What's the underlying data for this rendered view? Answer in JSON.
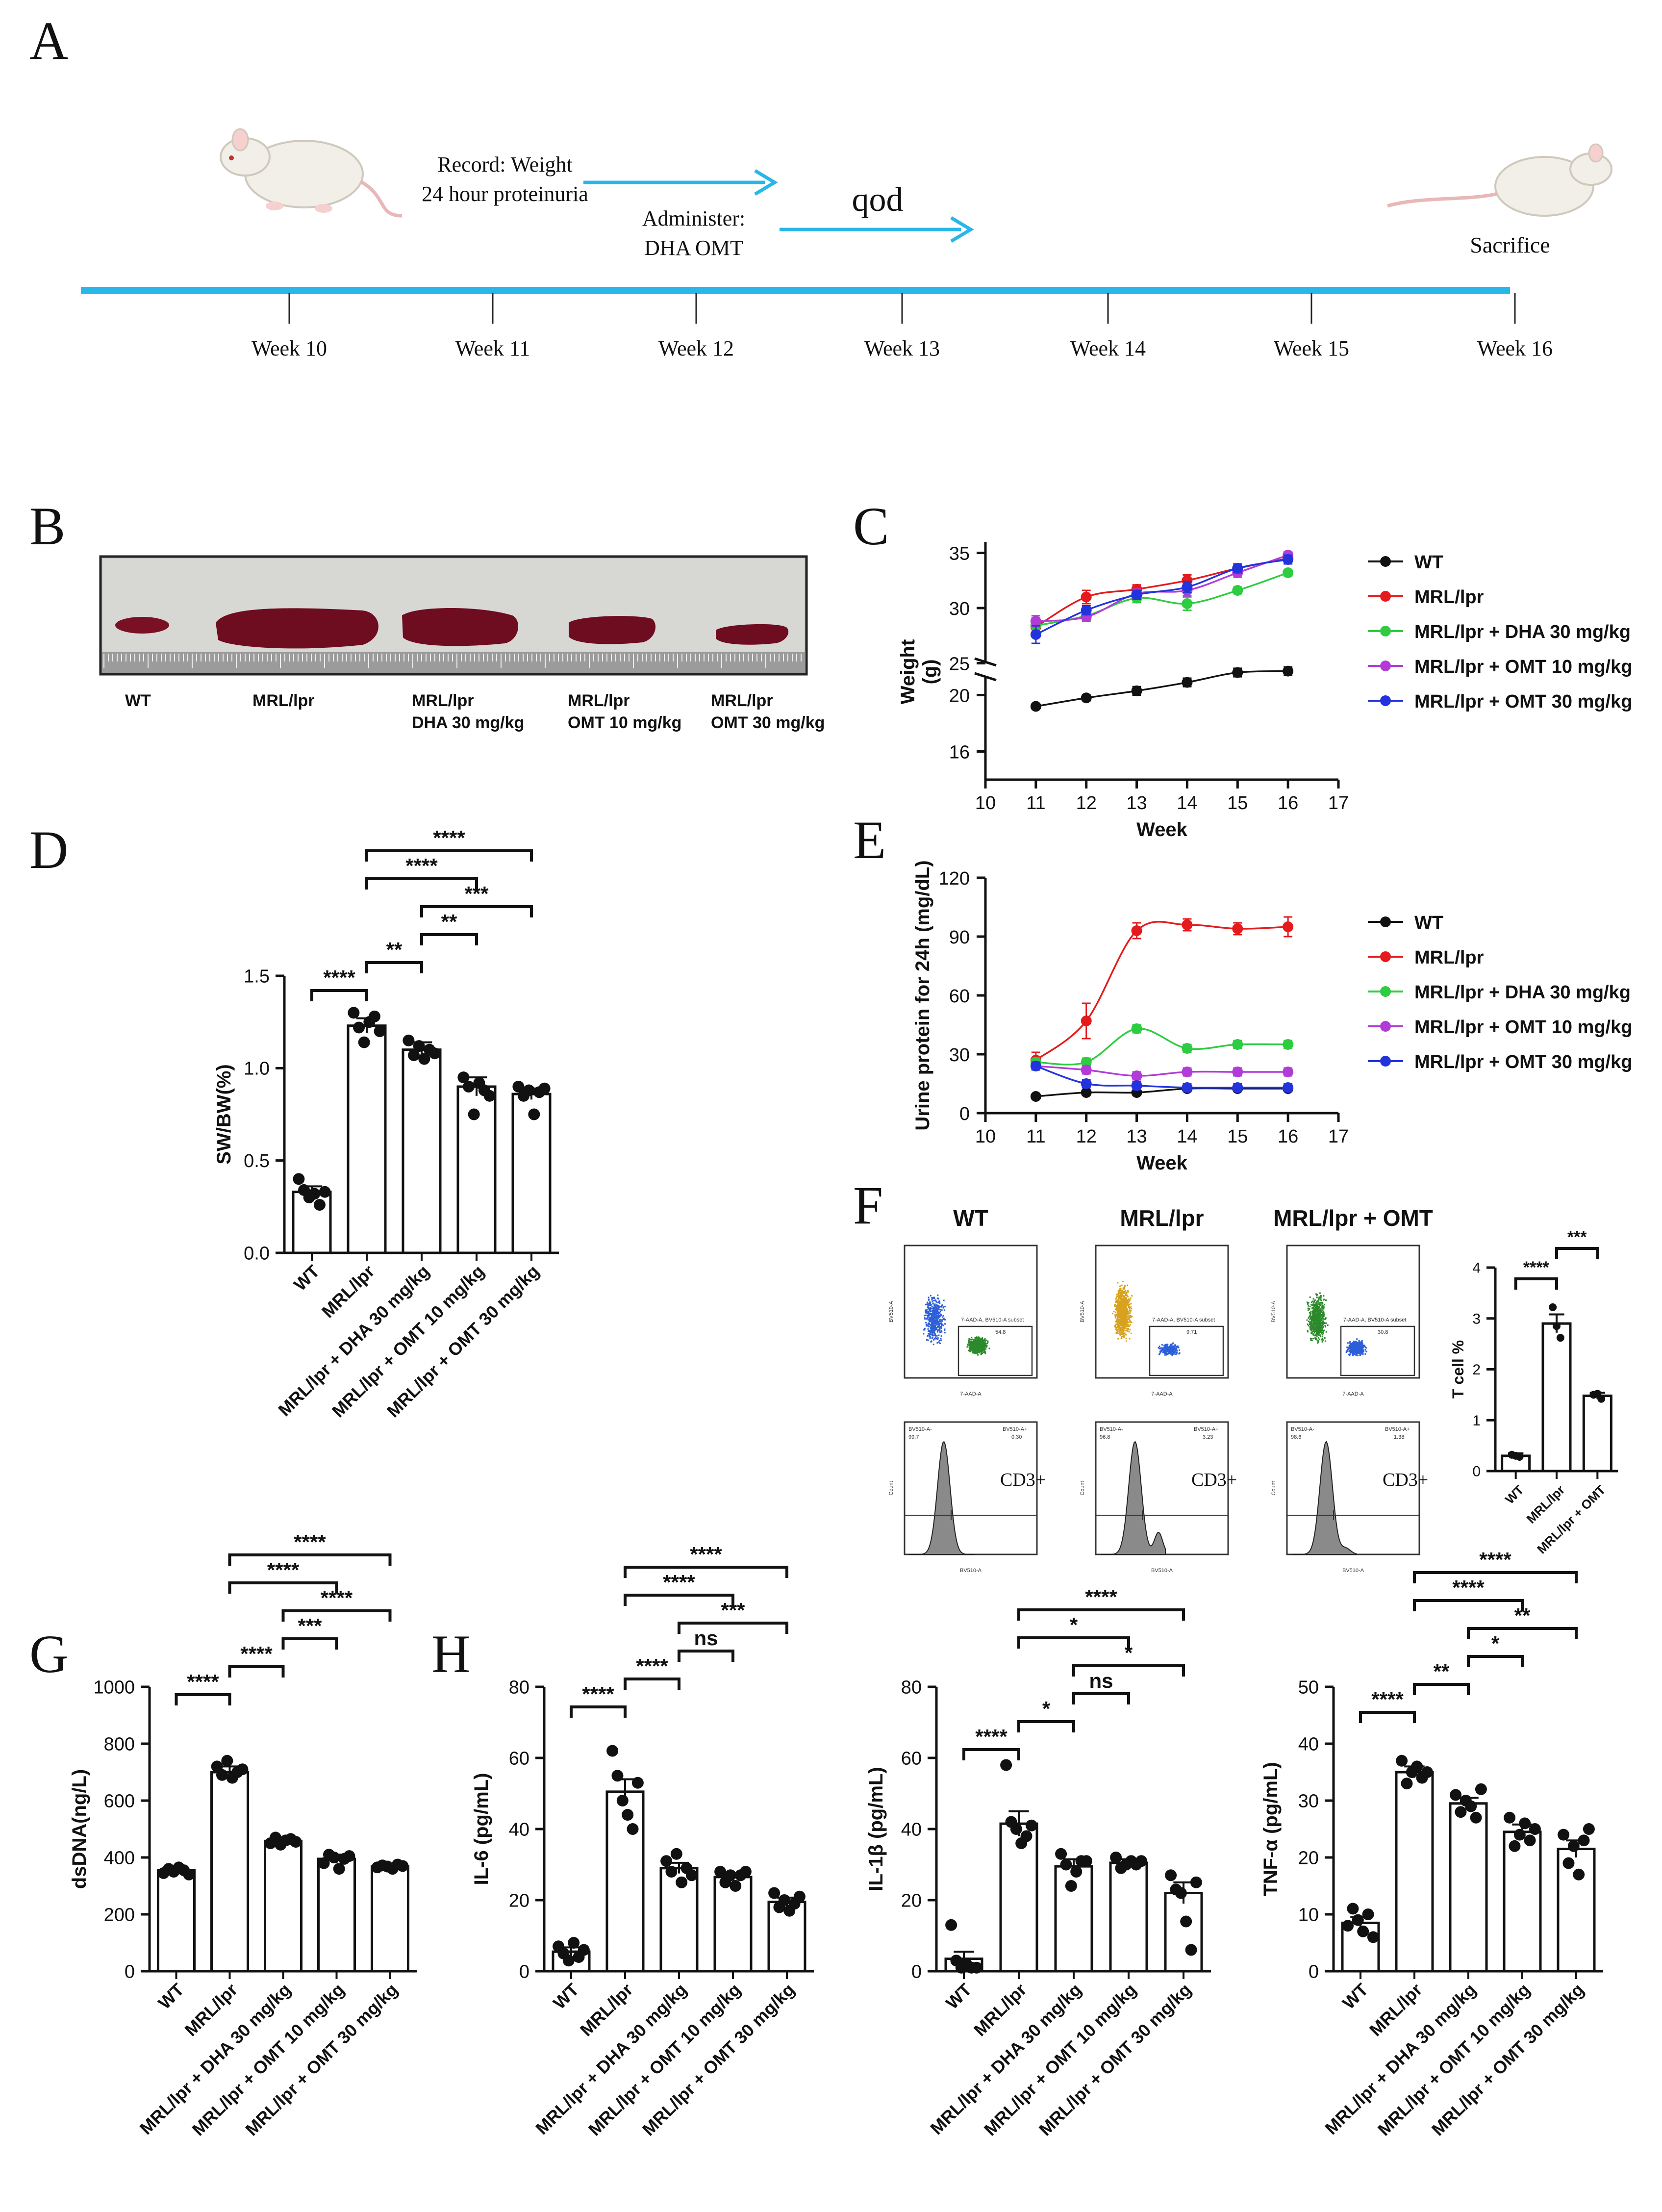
{
  "panel_labels": {
    "A": "A",
    "B": "B",
    "C": "C",
    "D": "D",
    "E": "E",
    "F": "F",
    "G": "G",
    "H": "H"
  },
  "timeline": {
    "record_line1": "Record: Weight",
    "record_line2": "24 hour proteinuria",
    "administer_line1": "Administer:",
    "administer_line2": "DHA OMT",
    "qod": "qod",
    "sacrifice": "Sacrifice",
    "weeks": [
      "Week 10",
      "Week 11",
      "Week 12",
      "Week 13",
      "Week 14",
      "Week 15",
      "Week 16"
    ],
    "line_color": "#29b6e8"
  },
  "spleen_photo": {
    "labels": [
      {
        "line1": "WT",
        "line2": ""
      },
      {
        "line1": "MRL/lpr",
        "line2": ""
      },
      {
        "line1": "MRL/lpr",
        "line2": "DHA 30 mg/kg"
      },
      {
        "line1": "MRL/lpr",
        "line2": "OMT 10 mg/kg"
      },
      {
        "line1": "MRL/lpr",
        "line2": "OMT 30 mg/kg"
      }
    ]
  },
  "colors": {
    "WT": "#111111",
    "MRL": "#e41a1c",
    "DHA": "#2ecc40",
    "OMT10": "#b23bd8",
    "OMT30": "#2233dd"
  },
  "flow": {
    "titles": [
      "WT",
      "MRL/lpr",
      "MRL/lpr + OMT"
    ],
    "gate_label": "CD3+",
    "dot_xlabel": "7-AAD-A",
    "dot_ylabel": "BV510-A",
    "gate_text": "7-AAD-A, BV510-A subset",
    "gate_pcts": [
      "54.8",
      "9.71",
      "30.8"
    ],
    "hist_ylabel": "Count",
    "hist_xlabel": "BV510-A",
    "hist_left_label": "BV510-A-",
    "hist_right_label": "BV510-A+",
    "hist_left_vals": [
      "99.7",
      "96.8",
      "98.6"
    ],
    "hist_right_vals": [
      "0.30",
      "3.23",
      "1.38"
    ]
  },
  "chart_data": [
    {
      "id": "C",
      "type": "line",
      "title": "",
      "xlabel": "Week",
      "ylabel": "Weight\n(g)",
      "x": [
        11,
        12,
        13,
        14,
        15,
        16
      ],
      "xlim": [
        10,
        17
      ],
      "xticks": [
        "10",
        "11",
        "12",
        "13",
        "14",
        "15",
        "16",
        "17"
      ],
      "ylim_lower": [
        14,
        22
      ],
      "ylim_upper": [
        24,
        36
      ],
      "yticks": [
        "16",
        "20",
        "25",
        "30",
        "35"
      ],
      "series": [
        {
          "name": "WT",
          "key": "WT",
          "values": [
            19.2,
            19.8,
            20.3,
            20.9,
            21.6,
            21.7
          ],
          "sem": [
            0.2,
            0.2,
            0.3,
            0.3,
            0.3,
            0.3
          ]
        },
        {
          "name": "MRL/lpr",
          "key": "MRL",
          "values": [
            28.3,
            31.0,
            31.7,
            32.5,
            33.6,
            34.5
          ],
          "sem": [
            0.8,
            0.6,
            0.4,
            0.5,
            0.4,
            0.4
          ]
        },
        {
          "name": "MRL/lpr + DHA 30 mg/kg",
          "key": "DHA",
          "values": [
            28.4,
            29.3,
            30.9,
            30.4,
            31.6,
            33.2
          ],
          "sem": [
            0.5,
            0.4,
            0.4,
            0.6,
            0.3,
            0.3
          ]
        },
        {
          "name": "MRL/lpr + OMT 10 mg/kg",
          "key": "OMT10",
          "values": [
            28.8,
            29.2,
            31.3,
            31.6,
            33.2,
            34.8
          ],
          "sem": [
            0.5,
            0.4,
            0.4,
            0.5,
            0.4,
            0.3
          ]
        },
        {
          "name": "MRL/lpr + OMT 30 mg/kg",
          "key": "OMT30",
          "values": [
            27.6,
            29.8,
            31.2,
            31.9,
            33.6,
            34.4
          ],
          "sem": [
            0.8,
            0.4,
            0.4,
            0.5,
            0.4,
            0.4
          ]
        }
      ]
    },
    {
      "id": "E",
      "type": "line",
      "title": "",
      "xlabel": "Week",
      "ylabel": "Urine protein for 24h (mg/dL)",
      "x": [
        11,
        12,
        13,
        14,
        15,
        16
      ],
      "xlim": [
        10,
        17
      ],
      "ylim": [
        0,
        120
      ],
      "xticks": [
        "10",
        "11",
        "12",
        "13",
        "14",
        "15",
        "16",
        "17"
      ],
      "yticks": [
        "0",
        "30",
        "60",
        "90",
        "120"
      ],
      "series": [
        {
          "name": "WT",
          "key": "WT",
          "values": [
            8.5,
            10.5,
            10.5,
            12.5,
            12.5,
            12.5
          ],
          "sem": [
            1.0,
            1.0,
            1.0,
            1.0,
            1.0,
            1.0
          ]
        },
        {
          "name": "MRL/lpr",
          "key": "MRL",
          "values": [
            27,
            47,
            93,
            96,
            94,
            95
          ],
          "sem": [
            4,
            9,
            4,
            3,
            3,
            5
          ]
        },
        {
          "name": "MRL/lpr + DHA 30 mg/kg",
          "key": "DHA",
          "values": [
            26,
            26,
            43,
            33,
            35,
            35
          ],
          "sem": [
            2,
            2,
            2,
            2,
            2,
            2
          ]
        },
        {
          "name": "MRL/lpr + OMT 10 mg/kg",
          "key": "OMT10",
          "values": [
            24,
            22,
            19,
            21,
            21,
            21
          ],
          "sem": [
            2,
            2,
            2,
            2,
            2,
            2
          ]
        },
        {
          "name": "MRL/lpr + OMT 30 mg/kg",
          "key": "OMT30",
          "values": [
            24,
            15,
            14,
            13,
            13,
            13
          ],
          "sem": [
            2,
            2,
            2,
            2,
            2,
            2
          ]
        }
      ]
    },
    {
      "id": "D",
      "type": "bar",
      "title": "",
      "ylabel": "SW/BW(%)",
      "xlabel": "",
      "categories": [
        "WT",
        "MRL/lpr",
        "MRL/lpr + DHA 30 mg/kg",
        "MRL/lpr + OMT 10 mg/kg",
        "MRL/lpr + OMT 30 mg/kg"
      ],
      "values": [
        0.33,
        1.23,
        1.1,
        0.9,
        0.86
      ],
      "sem": [
        0.03,
        0.04,
        0.04,
        0.05,
        0.03
      ],
      "points": [
        [
          0.4,
          0.34,
          0.3,
          0.32,
          0.26,
          0.33
        ],
        [
          1.3,
          1.22,
          1.14,
          1.25,
          1.28,
          1.2
        ],
        [
          1.15,
          1.07,
          1.12,
          1.05,
          1.1,
          1.08
        ],
        [
          0.95,
          0.9,
          0.75,
          0.92,
          0.88,
          0.85
        ],
        [
          0.9,
          0.85,
          0.88,
          0.75,
          0.87,
          0.89
        ]
      ],
      "ylim": [
        0,
        1.5
      ],
      "yticks": [
        "0.0",
        "0.5",
        "1.0",
        "1.5"
      ],
      "brackets": [
        {
          "a": 0,
          "b": 1,
          "label": "****",
          "level": 0
        },
        {
          "a": 1,
          "b": 2,
          "label": "**",
          "level": 1
        },
        {
          "a": 2,
          "b": 3,
          "label": "**",
          "level": 2
        },
        {
          "a": 2,
          "b": 4,
          "label": "***",
          "level": 3
        },
        {
          "a": 1,
          "b": 3,
          "label": "****",
          "level": 4
        },
        {
          "a": 1,
          "b": 4,
          "label": "****",
          "level": 5
        }
      ]
    },
    {
      "id": "F",
      "type": "bar",
      "title": "",
      "ylabel": "T cell %",
      "xlabel": "",
      "categories": [
        "WT",
        "MRL/lpr",
        "MRL/lpr + OMT"
      ],
      "values": [
        0.3,
        2.9,
        1.48
      ],
      "sem": [
        0.05,
        0.18,
        0.06
      ],
      "points": [
        [
          0.32,
          0.3,
          0.28
        ],
        [
          3.22,
          2.85,
          2.62
        ],
        [
          1.5,
          1.52,
          1.42
        ]
      ],
      "ylim": [
        0,
        4
      ],
      "yticks": [
        "0",
        "1",
        "2",
        "3",
        "4"
      ],
      "brackets": [
        {
          "a": 0,
          "b": 1,
          "label": "****",
          "level": 0
        },
        {
          "a": 1,
          "b": 2,
          "label": "***",
          "level": 1
        }
      ]
    },
    {
      "id": "G",
      "type": "bar",
      "title": "",
      "ylabel": "dsDNA(ng/L)",
      "xlabel": "",
      "categories": [
        "WT",
        "MRL/lpr",
        "MRL/lpr + DHA 30 mg/kg",
        "MRL/lpr + OMT 10 mg/kg",
        "MRL/lpr + OMT 30 mg/kg"
      ],
      "values": [
        355,
        700,
        458,
        395,
        368
      ],
      "sem": [
        8,
        20,
        12,
        15,
        6
      ],
      "points": [
        [
          345,
          360,
          350,
          365,
          355,
          340
        ],
        [
          720,
          690,
          740,
          680,
          700,
          710
        ],
        [
          450,
          470,
          445,
          460,
          465,
          455
        ],
        [
          380,
          410,
          400,
          360,
          395,
          405
        ],
        [
          365,
          372,
          368,
          360,
          375,
          370
        ]
      ],
      "ylim": [
        0,
        1000
      ],
      "yticks": [
        "0",
        "200",
        "400",
        "600",
        "800",
        "1000"
      ],
      "brackets": [
        {
          "a": 0,
          "b": 1,
          "label": "****",
          "level": 0
        },
        {
          "a": 1,
          "b": 2,
          "label": "****",
          "level": 1
        },
        {
          "a": 2,
          "b": 3,
          "label": "***",
          "level": 2
        },
        {
          "a": 2,
          "b": 4,
          "label": "****",
          "level": 3
        },
        {
          "a": 1,
          "b": 3,
          "label": "****",
          "level": 4
        },
        {
          "a": 1,
          "b": 4,
          "label": "****",
          "level": 5
        }
      ]
    },
    {
      "id": "H1",
      "type": "bar",
      "title": "",
      "ylabel": "IL-6 (pg/mL)",
      "xlabel": "",
      "categories": [
        "WT",
        "MRL/lpr",
        "MRL/lpr + DHA 30 mg/kg",
        "MRL/lpr + OMT 10 mg/kg",
        "MRL/lpr + OMT 30 mg/kg"
      ],
      "values": [
        5.5,
        50.5,
        29.0,
        26.5,
        19.5
      ],
      "sem": [
        1.2,
        3.5,
        1.5,
        1.0,
        1.2
      ],
      "points": [
        [
          7,
          5,
          3,
          8,
          4,
          6
        ],
        [
          62,
          55,
          48,
          44,
          40,
          53
        ],
        [
          31,
          28,
          33,
          25,
          29,
          27
        ],
        [
          28,
          25,
          27,
          24,
          27,
          28
        ],
        [
          22,
          18,
          20,
          17,
          19,
          21
        ]
      ],
      "ylim": [
        0,
        80
      ],
      "yticks": [
        "0",
        "20",
        "40",
        "60",
        "80"
      ],
      "brackets": [
        {
          "a": 0,
          "b": 1,
          "label": "****",
          "level": 0
        },
        {
          "a": 1,
          "b": 2,
          "label": "****",
          "level": 1
        },
        {
          "a": 2,
          "b": 3,
          "label": "ns",
          "level": 2
        },
        {
          "a": 2,
          "b": 4,
          "label": "***",
          "level": 3
        },
        {
          "a": 1,
          "b": 3,
          "label": "****",
          "level": 4
        },
        {
          "a": 1,
          "b": 4,
          "label": "****",
          "level": 5
        }
      ]
    },
    {
      "id": "H2",
      "type": "bar",
      "title": "",
      "ylabel": "IL-1β (pg/mL)",
      "xlabel": "",
      "categories": [
        "WT",
        "MRL/lpr",
        "MRL/lpr + DHA 30 mg/kg",
        "MRL/lpr + OMT 10 mg/kg",
        "MRL/lpr + OMT 30 mg/kg"
      ],
      "values": [
        3.5,
        41.5,
        29.5,
        30.5,
        22.0
      ],
      "sem": [
        2.0,
        3.5,
        2.0,
        1.0,
        3.0
      ],
      "points": [
        [
          13,
          3,
          1,
          2,
          1,
          1
        ],
        [
          58,
          42,
          40,
          36,
          38,
          41
        ],
        [
          33,
          30,
          24,
          28,
          31,
          31
        ],
        [
          32,
          29,
          30,
          31,
          30,
          31
        ],
        [
          27,
          23,
          22,
          14,
          6,
          25
        ]
      ],
      "ylim": [
        0,
        80
      ],
      "yticks": [
        "0",
        "20",
        "40",
        "60",
        "80"
      ],
      "brackets": [
        {
          "a": 0,
          "b": 1,
          "label": "****",
          "level": 0
        },
        {
          "a": 1,
          "b": 2,
          "label": "*",
          "level": 1
        },
        {
          "a": 2,
          "b": 3,
          "label": "ns",
          "level": 2
        },
        {
          "a": 2,
          "b": 4,
          "label": "*",
          "level": 3
        },
        {
          "a": 1,
          "b": 3,
          "label": "*",
          "level": 4
        },
        {
          "a": 1,
          "b": 4,
          "label": "****",
          "level": 5
        }
      ]
    },
    {
      "id": "H3",
      "type": "bar",
      "title": "",
      "ylabel": "TNF-α (pg/mL)",
      "xlabel": "",
      "categories": [
        "WT",
        "MRL/lpr",
        "MRL/lpr + DHA 30 mg/kg",
        "MRL/lpr + OMT 10 mg/kg",
        "MRL/lpr + OMT 30 mg/kg"
      ],
      "values": [
        8.5,
        35.0,
        29.5,
        24.5,
        21.5
      ],
      "sem": [
        1.0,
        1.0,
        1.0,
        1.3,
        1.5
      ],
      "points": [
        [
          8,
          11,
          9,
          7,
          10,
          6
        ],
        [
          37,
          33,
          35,
          36,
          34,
          35
        ],
        [
          31,
          28,
          30,
          29,
          27,
          32
        ],
        [
          27,
          22,
          24,
          26,
          23,
          25
        ],
        [
          24,
          19,
          22,
          17,
          23,
          25
        ]
      ],
      "ylim": [
        0,
        50
      ],
      "yticks": [
        "0",
        "10",
        "20",
        "30",
        "40",
        "50"
      ],
      "brackets": [
        {
          "a": 0,
          "b": 1,
          "label": "****",
          "level": 0
        },
        {
          "a": 1,
          "b": 2,
          "label": "**",
          "level": 1
        },
        {
          "a": 2,
          "b": 3,
          "label": "*",
          "level": 2
        },
        {
          "a": 2,
          "b": 4,
          "label": "**",
          "level": 3
        },
        {
          "a": 1,
          "b": 3,
          "label": "****",
          "level": 4
        },
        {
          "a": 1,
          "b": 4,
          "label": "****",
          "level": 5
        }
      ]
    }
  ]
}
